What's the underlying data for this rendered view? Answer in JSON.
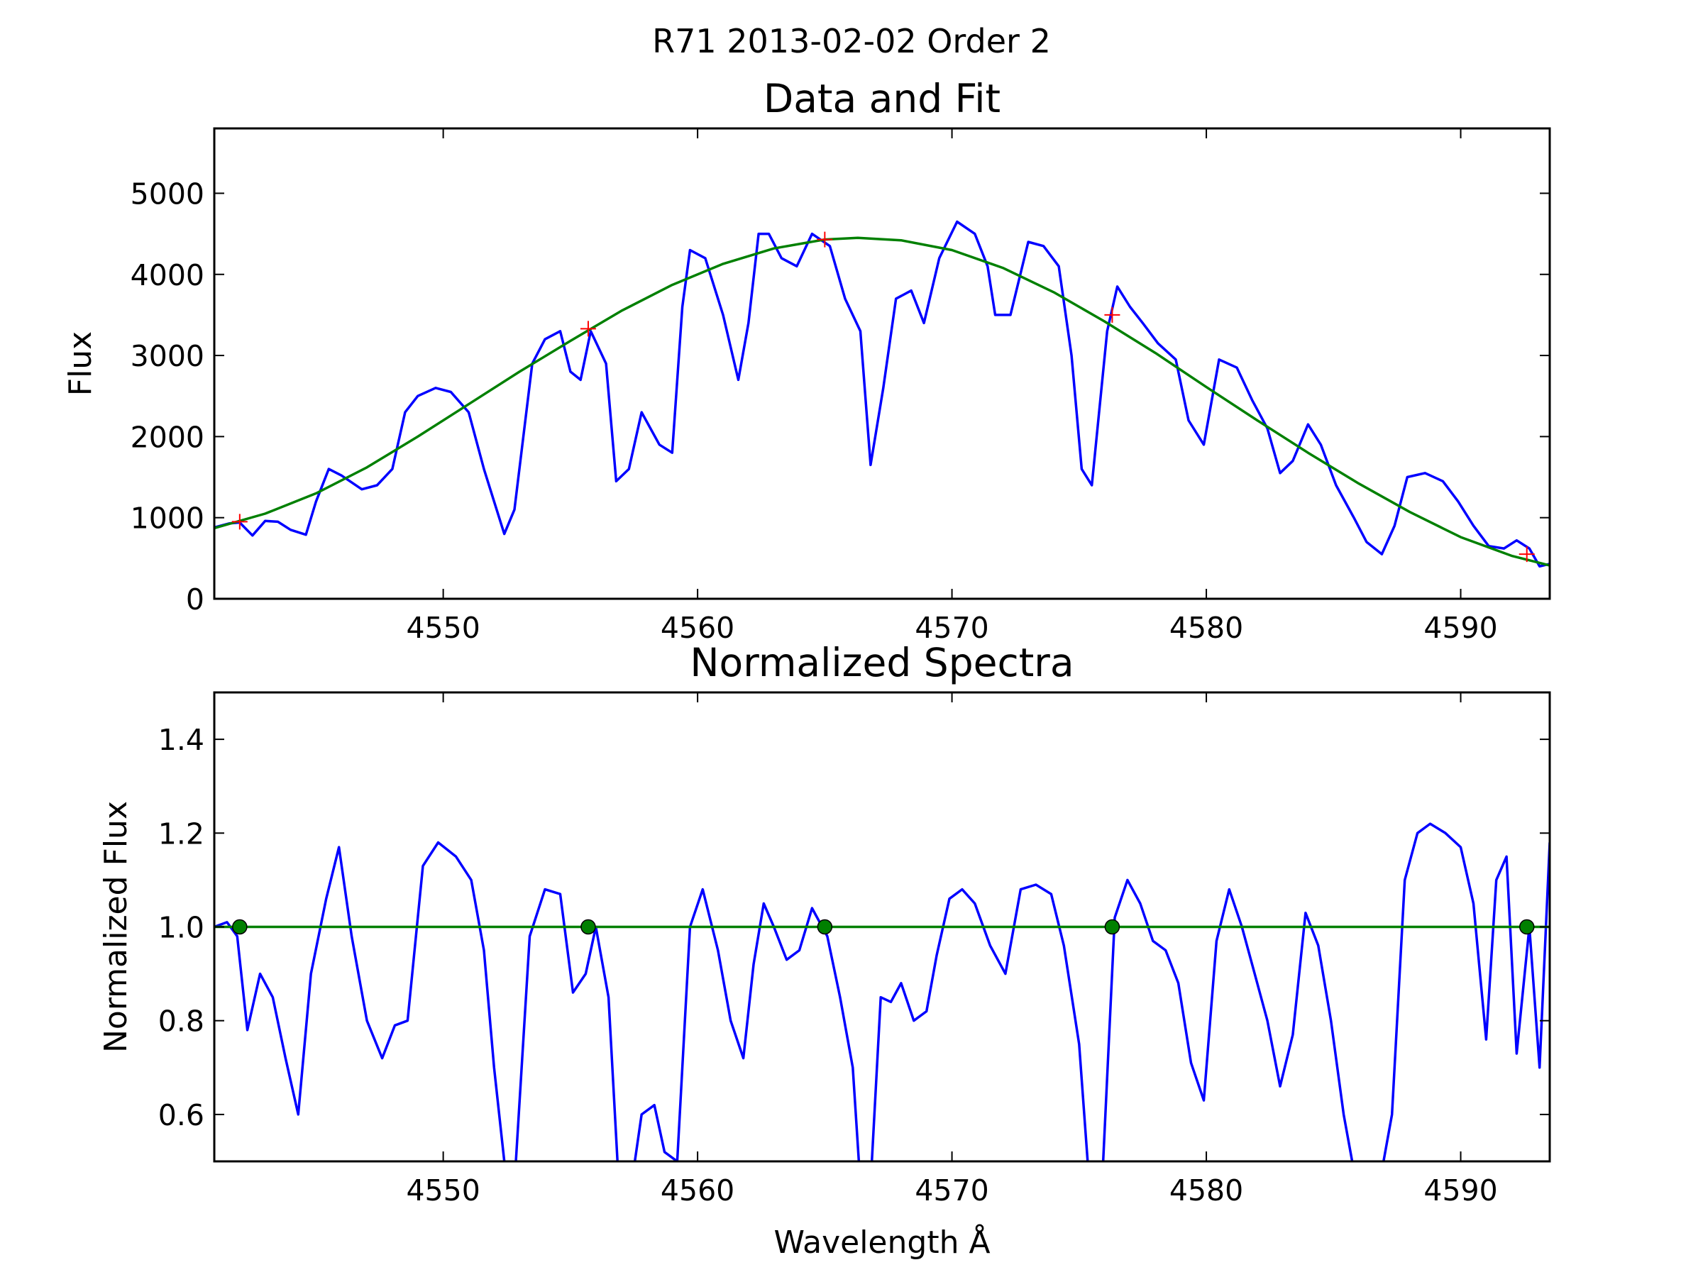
{
  "suptitle": "R71 2013-02-02 Order 2",
  "chart_data": [
    {
      "type": "line",
      "title": "Data and Fit",
      "xlabel": "",
      "ylabel": "Flux",
      "xlim": [
        4541,
        4593.5
      ],
      "ylim": [
        0,
        5800
      ],
      "xticks": [
        4550,
        4560,
        4570,
        4580,
        4590
      ],
      "yticks": [
        0,
        1000,
        2000,
        3000,
        4000,
        5000
      ],
      "grid": false,
      "colors": {
        "data": "#0000ff",
        "fit": "#008000",
        "markers": "#ff0000"
      },
      "series": [
        {
          "role": "data",
          "x": [
            4541.0,
            4541.6,
            4542.0,
            4542.5,
            4543.0,
            4543.5,
            4544.0,
            4544.6,
            4545.0,
            4545.5,
            4546.0,
            4546.8,
            4547.4,
            4548.0,
            4548.5,
            4549.0,
            4549.7,
            4550.3,
            4551.0,
            4551.6,
            4552.0,
            4552.4,
            4552.8,
            4553.5,
            4554.0,
            4554.6,
            4555.0,
            4555.4,
            4555.8,
            4556.4,
            4556.8,
            4557.3,
            4557.8,
            4558.5,
            4559.0,
            4559.4,
            4559.7,
            4560.3,
            4561.0,
            4561.6,
            4562.0,
            4562.4,
            4562.8,
            4563.3,
            4563.9,
            4564.5,
            4565.2,
            4565.8,
            4566.4,
            4566.8,
            4567.3,
            4567.8,
            4568.4,
            4568.9,
            4569.5,
            4570.2,
            4570.9,
            4571.4,
            4571.7,
            4572.3,
            4573.0,
            4573.6,
            4574.2,
            4574.7,
            4575.1,
            4575.5,
            4576.1,
            4576.5,
            4577.0,
            4577.5,
            4578.1,
            4578.8,
            4579.3,
            4579.9,
            4580.5,
            4581.2,
            4581.8,
            4582.4,
            4582.9,
            4583.4,
            4584.0,
            4584.5,
            4585.1,
            4585.8,
            4586.3,
            4586.9,
            4587.4,
            4587.9,
            4588.6,
            4589.3,
            4589.9,
            4590.5,
            4591.1,
            4591.7,
            4592.2,
            4592.7,
            4593.1,
            4593.5
          ],
          "y": [
            880,
            930,
            940,
            780,
            960,
            950,
            850,
            790,
            1200,
            1600,
            1520,
            1350,
            1400,
            1600,
            2300,
            2500,
            2600,
            2550,
            2300,
            1600,
            1200,
            800,
            1100,
            2900,
            3200,
            3300,
            2800,
            2700,
            3300,
            2900,
            1450,
            1600,
            2300,
            1900,
            1800,
            3600,
            4300,
            4200,
            3500,
            2700,
            3400,
            4500,
            4500,
            4200,
            4100,
            4500,
            4350,
            3700,
            3300,
            1650,
            2600,
            3700,
            3800,
            3400,
            4200,
            4650,
            4500,
            4100,
            3500,
            3500,
            4400,
            4350,
            4100,
            3000,
            1600,
            1400,
            3300,
            3850,
            3600,
            3400,
            3150,
            2950,
            2200,
            1900,
            2950,
            2850,
            2450,
            2100,
            1550,
            1700,
            2150,
            1900,
            1400,
            1000,
            700,
            550,
            900,
            1500,
            1550,
            1450,
            1200,
            900,
            650,
            620,
            720,
            620,
            400,
            430
          ]
        },
        {
          "role": "fit",
          "x": [
            4541.0,
            4543.0,
            4545.0,
            4547.0,
            4549.0,
            4551.0,
            4553.0,
            4555.0,
            4557.0,
            4559.0,
            4561.0,
            4563.0,
            4565.0,
            4566.3,
            4568.0,
            4570.0,
            4572.0,
            4574.0,
            4576.0,
            4578.0,
            4580.0,
            4582.0,
            4584.0,
            4586.0,
            4588.0,
            4590.0,
            4592.0,
            4593.5
          ],
          "y": [
            870,
            1050,
            1300,
            1620,
            2000,
            2400,
            2800,
            3180,
            3550,
            3870,
            4130,
            4320,
            4430,
            4450,
            4420,
            4300,
            4080,
            3780,
            3420,
            3030,
            2610,
            2200,
            1800,
            1420,
            1070,
            760,
            530,
            410
          ]
        },
        {
          "role": "markers",
          "x": [
            4542.0,
            4555.7,
            4565.0,
            4576.3,
            4592.6
          ],
          "y": [
            950,
            3330,
            4430,
            3500,
            550
          ]
        }
      ]
    },
    {
      "type": "line",
      "title": "Normalized Spectra",
      "xlabel": "Wavelength Å",
      "ylabel": "Normalized Flux",
      "xlim": [
        4541,
        4593.5
      ],
      "ylim": [
        0.5,
        1.5
      ],
      "xticks": [
        4550,
        4560,
        4570,
        4580,
        4590
      ],
      "yticks": [
        0.6,
        0.8,
        1.0,
        1.2,
        1.4
      ],
      "grid": false,
      "colors": {
        "data": "#0000ff",
        "fit": "#008000",
        "markers": "#008000"
      },
      "series": [
        {
          "role": "data",
          "x": [
            4541.0,
            4541.5,
            4541.9,
            4542.3,
            4542.8,
            4543.3,
            4543.8,
            4544.3,
            4544.8,
            4545.4,
            4545.9,
            4546.4,
            4547.0,
            4547.6,
            4548.1,
            4548.6,
            4549.2,
            4549.8,
            4550.5,
            4551.1,
            4551.6,
            4552.0,
            4552.4,
            4552.8,
            4553.4,
            4554.0,
            4554.6,
            4555.1,
            4555.6,
            4556.0,
            4556.5,
            4556.9,
            4557.4,
            4557.8,
            4558.3,
            4558.7,
            4559.2,
            4559.7,
            4560.2,
            4560.8,
            4561.3,
            4561.8,
            4562.2,
            4562.6,
            4563.0,
            4563.5,
            4564.0,
            4564.5,
            4565.1,
            4565.6,
            4566.1,
            4566.4,
            4566.8,
            4567.2,
            4567.6,
            4568.0,
            4568.5,
            4569.0,
            4569.4,
            4569.9,
            4570.4,
            4570.9,
            4571.5,
            4572.1,
            4572.7,
            4573.3,
            4573.9,
            4574.4,
            4575.0,
            4575.4,
            4575.9,
            4576.4,
            4576.9,
            4577.4,
            4577.9,
            4578.4,
            4578.9,
            4579.4,
            4579.9,
            4580.4,
            4580.9,
            4581.4,
            4581.9,
            4582.4,
            4582.9,
            4583.4,
            4583.9,
            4584.4,
            4584.9,
            4585.4,
            4585.9,
            4586.4,
            4586.9,
            4587.3,
            4587.8,
            4588.3,
            4588.8,
            4589.4,
            4590.0,
            4590.5,
            4591.0,
            4591.4,
            4591.8,
            4592.2,
            4592.7,
            4593.1,
            4593.5
          ],
          "y": [
            1.0,
            1.01,
            0.98,
            0.78,
            0.9,
            0.85,
            0.72,
            0.6,
            0.9,
            1.06,
            1.17,
            0.98,
            0.8,
            0.72,
            0.79,
            0.8,
            1.13,
            1.18,
            1.15,
            1.1,
            0.95,
            0.7,
            0.5,
            0.45,
            0.98,
            1.08,
            1.07,
            0.86,
            0.9,
            1.0,
            0.85,
            0.45,
            0.45,
            0.6,
            0.62,
            0.52,
            0.5,
            1.0,
            1.08,
            0.95,
            0.8,
            0.72,
            0.92,
            1.05,
            1.0,
            0.93,
            0.95,
            1.04,
            0.98,
            0.85,
            0.7,
            0.45,
            0.45,
            0.85,
            0.84,
            0.88,
            0.8,
            0.82,
            0.94,
            1.06,
            1.08,
            1.05,
            0.96,
            0.9,
            1.08,
            1.09,
            1.07,
            0.96,
            0.75,
            0.45,
            0.45,
            1.02,
            1.1,
            1.05,
            0.97,
            0.95,
            0.88,
            0.71,
            0.63,
            0.97,
            1.08,
            1.0,
            0.9,
            0.8,
            0.66,
            0.77,
            1.03,
            0.96,
            0.8,
            0.6,
            0.45,
            0.45,
            0.48,
            0.6,
            1.1,
            1.2,
            1.22,
            1.2,
            1.17,
            1.05,
            0.76,
            1.1,
            1.15,
            0.73,
            1.0,
            0.7,
            1.18
          ]
        },
        {
          "role": "fit",
          "x": [
            4541.0,
            4593.5
          ],
          "y": [
            1.0,
            1.0
          ]
        },
        {
          "role": "markers",
          "x": [
            4542.0,
            4555.7,
            4565.0,
            4576.3,
            4592.6
          ],
          "y": [
            1.0,
            1.0,
            1.0,
            1.0,
            1.0
          ]
        }
      ]
    }
  ]
}
